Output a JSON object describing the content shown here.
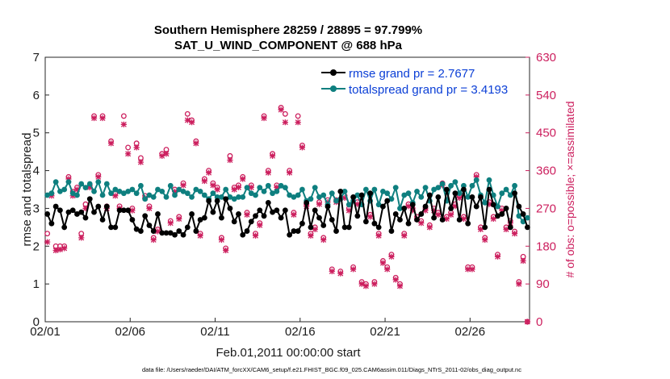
{
  "chart_data": {
    "type": "line",
    "title": "Southern Hemisphere 28259 / 28895 = 97.799%",
    "subtitle": "SAT_U_WIND_COMPONENT @ 688 hPa",
    "xlabel": "Feb.01,2011 00:00:00 start",
    "ylabel": "rmse and totalspread",
    "y2label": "# of obs: o=possible; ×=assimilated",
    "footnote": "data file: /Users/raeder/DAI/ATM_forcXX/CAM6_setup/f.e21.FHIST_BGC.f09_025.CAM6assim.011/Diags_NTrS_2011-02/obs_diag_output.nc",
    "xlim": [
      0,
      28.5
    ],
    "ylim": [
      0,
      7
    ],
    "y2lim": [
      0,
      630
    ],
    "xtick_labels": [
      "02/01",
      "02/06",
      "02/11",
      "02/16",
      "02/21",
      "02/26"
    ],
    "ytick_labels": [
      "0",
      "1",
      "2",
      "3",
      "4",
      "5",
      "6",
      "7"
    ],
    "y2tick_labels": [
      "0",
      "90",
      "180",
      "270",
      "360",
      "450",
      "540",
      "630"
    ],
    "colors": {
      "rmse": "#000000",
      "totalspread": "#0e7f7f",
      "obs": "#cc1f5e",
      "legend_text": "#0b3fd6"
    },
    "series": [
      {
        "name": "rmse grand pr = 2.7677",
        "x": [
          0.125,
          0.375,
          0.625,
          0.875,
          1.125,
          1.375,
          1.625,
          1.875,
          2.125,
          2.375,
          2.625,
          2.875,
          3.125,
          3.375,
          3.625,
          3.875,
          4.125,
          4.375,
          4.625,
          4.875,
          5.125,
          5.375,
          5.625,
          5.875,
          6.125,
          6.375,
          6.625,
          6.875,
          7.125,
          7.375,
          7.625,
          7.875,
          8.125,
          8.375,
          8.625,
          8.875,
          9.125,
          9.375,
          9.625,
          9.875,
          10.125,
          10.375,
          10.625,
          10.875,
          11.125,
          11.375,
          11.625,
          11.875,
          12.125,
          12.375,
          12.625,
          12.875,
          13.125,
          13.375,
          13.625,
          13.875,
          14.125,
          14.375,
          14.625,
          14.875,
          15.125,
          15.375,
          15.625,
          15.875,
          16.125,
          16.375,
          16.625,
          16.875,
          17.125,
          17.375,
          17.625,
          17.875,
          18.125,
          18.375,
          18.625,
          18.875,
          19.125,
          19.375,
          19.625,
          19.875,
          20.125,
          20.375,
          20.625,
          20.875,
          21.125,
          21.375,
          21.625,
          21.875,
          22.125,
          22.375,
          22.625,
          22.875,
          23.125,
          23.375,
          23.625,
          23.875,
          24.125,
          24.375,
          24.625,
          24.875,
          25.125,
          25.375,
          25.625,
          25.875,
          26.125,
          26.375,
          26.625,
          26.875,
          27.125,
          27.375,
          27.625,
          27.875,
          28.125,
          28.375
        ],
        "y": [
          2.85,
          2.6,
          3.05,
          2.95,
          2.5,
          2.9,
          2.95,
          2.85,
          2.9,
          2.75,
          3.25,
          2.9,
          3.05,
          2.7,
          3.05,
          2.5,
          2.5,
          2.95,
          2.95,
          2.95,
          2.7,
          2.45,
          2.4,
          2.8,
          2.55,
          2.4,
          2.85,
          2.35,
          2.35,
          2.35,
          2.3,
          2.4,
          2.3,
          2.5,
          2.85,
          2.4,
          2.7,
          2.75,
          3.2,
          2.9,
          3.2,
          2.75,
          3.25,
          3.0,
          2.65,
          2.85,
          2.3,
          2.4,
          2.65,
          2.8,
          2.95,
          2.8,
          3.15,
          2.9,
          2.95,
          2.75,
          2.95,
          2.3,
          2.4,
          2.4,
          2.6,
          3.15,
          2.5,
          2.95,
          2.75,
          2.55,
          3.05,
          2.7,
          2.4,
          3.45,
          2.5,
          2.5,
          3.3,
          2.8,
          3.35,
          2.65,
          3.4,
          2.6,
          2.5,
          3.05,
          3.2,
          2.4,
          2.85,
          2.7,
          3.0,
          2.6,
          3.1,
          2.7,
          2.85,
          3.05,
          3.35,
          2.75,
          3.3,
          2.7,
          3.5,
          3.0,
          3.4,
          2.7,
          3.5,
          2.6,
          3.3,
          3.05,
          3.3,
          2.5,
          3.5,
          3.1,
          2.8,
          2.85,
          3.0,
          2.5,
          3.4,
          3.05,
          2.85,
          2.5
        ]
      },
      {
        "name": "totalspread grand pr = 3.4193",
        "x": [
          0.125,
          0.375,
          0.625,
          0.875,
          1.125,
          1.375,
          1.625,
          1.875,
          2.125,
          2.375,
          2.625,
          2.875,
          3.125,
          3.375,
          3.625,
          3.875,
          4.125,
          4.375,
          4.625,
          4.875,
          5.125,
          5.375,
          5.625,
          5.875,
          6.125,
          6.375,
          6.625,
          6.875,
          7.125,
          7.375,
          7.625,
          7.875,
          8.125,
          8.375,
          8.625,
          8.875,
          9.125,
          9.375,
          9.625,
          9.875,
          10.125,
          10.375,
          10.625,
          10.875,
          11.125,
          11.375,
          11.625,
          11.875,
          12.125,
          12.375,
          12.625,
          12.875,
          13.125,
          13.375,
          13.625,
          13.875,
          14.125,
          14.375,
          14.625,
          14.875,
          15.125,
          15.375,
          15.625,
          15.875,
          16.125,
          16.375,
          16.625,
          16.875,
          17.125,
          17.375,
          17.625,
          17.875,
          18.125,
          18.375,
          18.625,
          18.875,
          19.125,
          19.375,
          19.625,
          19.875,
          20.125,
          20.375,
          20.625,
          20.875,
          21.125,
          21.375,
          21.625,
          21.875,
          22.125,
          22.375,
          22.625,
          22.875,
          23.125,
          23.375,
          23.625,
          23.875,
          24.125,
          24.375,
          24.625,
          24.875,
          25.125,
          25.375,
          25.625,
          25.875,
          26.125,
          26.375,
          26.625,
          26.875,
          27.125,
          27.375,
          27.625,
          27.875,
          28.125,
          28.375
        ],
        "y": [
          3.35,
          3.4,
          3.7,
          3.45,
          3.5,
          3.7,
          3.4,
          3.35,
          3.65,
          3.55,
          3.65,
          3.45,
          3.7,
          3.35,
          3.65,
          3.4,
          3.5,
          3.45,
          3.4,
          3.45,
          3.5,
          3.4,
          3.6,
          3.25,
          3.35,
          3.3,
          3.5,
          3.45,
          3.3,
          3.6,
          3.35,
          3.5,
          3.45,
          3.4,
          3.3,
          3.5,
          3.45,
          3.35,
          3.25,
          3.4,
          3.3,
          3.3,
          3.5,
          3.3,
          3.25,
          3.3,
          3.3,
          3.55,
          3.4,
          3.35,
          3.55,
          3.45,
          3.6,
          3.4,
          3.45,
          3.6,
          3.55,
          3.35,
          3.3,
          3.35,
          3.5,
          3.2,
          3.25,
          3.55,
          3.3,
          3.35,
          3.1,
          3.4,
          3.2,
          3.25,
          3.45,
          3.1,
          3.2,
          3.35,
          3.1,
          3.5,
          3.2,
          3.5,
          3.1,
          3.45,
          3.4,
          3.25,
          3.55,
          3.0,
          3.35,
          3.4,
          3.15,
          3.45,
          3.3,
          3.55,
          3.2,
          3.5,
          3.55,
          3.65,
          3.2,
          3.6,
          3.7,
          3.4,
          3.6,
          3.3,
          3.6,
          3.75,
          3.35,
          3.15,
          3.75,
          3.35,
          3.05,
          3.4,
          3.5,
          3.35,
          3.6,
          2.8,
          2.65,
          2.75
        ]
      },
      {
        "name": "obs possible",
        "x": [
          0.125,
          0.375,
          0.625,
          0.875,
          1.125,
          1.375,
          1.625,
          1.875,
          2.125,
          2.375,
          2.625,
          2.875,
          3.125,
          3.375,
          3.625,
          3.875,
          4.125,
          4.375,
          4.625,
          4.875,
          5.125,
          5.375,
          5.625,
          5.875,
          6.125,
          6.375,
          6.625,
          6.875,
          7.125,
          7.375,
          7.625,
          7.875,
          8.125,
          8.375,
          8.625,
          8.875,
          9.125,
          9.375,
          9.625,
          9.875,
          10.125,
          10.375,
          10.625,
          10.875,
          11.125,
          11.375,
          11.625,
          11.875,
          12.125,
          12.375,
          12.625,
          12.875,
          13.125,
          13.375,
          13.625,
          13.875,
          14.125,
          14.375,
          14.625,
          14.875,
          15.125,
          15.375,
          15.625,
          15.875,
          16.125,
          16.375,
          16.625,
          16.875,
          17.125,
          17.375,
          17.625,
          17.875,
          18.125,
          18.375,
          18.625,
          18.875,
          19.125,
          19.375,
          19.625,
          19.875,
          20.125,
          20.375,
          20.625,
          20.875,
          21.125,
          21.375,
          21.625,
          21.875,
          22.125,
          22.375,
          22.625,
          22.875,
          23.125,
          23.375,
          23.625,
          23.875,
          24.125,
          24.375,
          24.625,
          24.875,
          25.125,
          25.375,
          25.625,
          25.875,
          26.125,
          26.375,
          26.625,
          26.875,
          27.125,
          27.375,
          27.625,
          27.875,
          28.125,
          28.375
        ],
        "y": [
          210,
          305,
          180,
          180,
          180,
          345,
          310,
          320,
          210,
          280,
          325,
          490,
          350,
          490,
          275,
          430,
          305,
          275,
          490,
          415,
          270,
          425,
          390,
          300,
          275,
          200,
          220,
          400,
          410,
          240,
          315,
          250,
          330,
          495,
          480,
          430,
          210,
          340,
          360,
          330,
          320,
          200,
          175,
          395,
          320,
          325,
          345,
          260,
          325,
          210,
          235,
          490,
          360,
          400,
          325,
          510,
          495,
          360,
          260,
          490,
          420,
          280,
          210,
          225,
          285,
          200,
          290,
          125,
          290,
          120,
          300,
          270,
          130,
          285,
          95,
          90,
          255,
          95,
          210,
          145,
          130,
          160,
          105,
          90,
          210,
          280,
          270,
          250,
          240,
          270,
          230,
          270,
          260,
          330,
          250,
          260,
          280,
          300,
          250,
          130,
          130,
          350,
          225,
          200,
          285,
          250,
          160,
          270,
          225,
          240,
          215,
          95,
          155,
          0
        ]
      },
      {
        "name": "obs assimilated",
        "x": [
          0.125,
          0.375,
          0.625,
          0.875,
          1.125,
          1.375,
          1.625,
          1.875,
          2.125,
          2.375,
          2.625,
          2.875,
          3.125,
          3.375,
          3.625,
          3.875,
          4.125,
          4.375,
          4.625,
          4.875,
          5.125,
          5.375,
          5.625,
          5.875,
          6.125,
          6.375,
          6.625,
          6.875,
          7.125,
          7.375,
          7.625,
          7.875,
          8.125,
          8.375,
          8.625,
          8.875,
          9.125,
          9.375,
          9.625,
          9.875,
          10.125,
          10.375,
          10.625,
          10.875,
          11.125,
          11.375,
          11.625,
          11.875,
          12.125,
          12.375,
          12.625,
          12.875,
          13.125,
          13.375,
          13.625,
          13.875,
          14.125,
          14.375,
          14.625,
          14.875,
          15.125,
          15.375,
          15.625,
          15.875,
          16.125,
          16.375,
          16.625,
          16.875,
          17.125,
          17.375,
          17.625,
          17.875,
          18.125,
          18.375,
          18.625,
          18.875,
          19.125,
          19.375,
          19.625,
          19.875,
          20.125,
          20.375,
          20.625,
          20.875,
          21.125,
          21.375,
          21.625,
          21.875,
          22.125,
          22.375,
          22.625,
          22.875,
          23.125,
          23.375,
          23.625,
          23.875,
          24.125,
          24.375,
          24.625,
          24.875,
          25.125,
          25.375,
          25.625,
          25.875,
          26.125,
          26.375,
          26.625,
          26.875,
          27.125,
          27.375,
          27.625,
          27.875,
          28.125,
          28.375
        ],
        "y": [
          190,
          300,
          170,
          172,
          175,
          340,
          300,
          315,
          200,
          270,
          320,
          485,
          345,
          485,
          270,
          425,
          300,
          270,
          470,
          400,
          265,
          415,
          380,
          295,
          270,
          195,
          215,
          395,
          400,
          235,
          310,
          245,
          325,
          480,
          475,
          425,
          205,
          335,
          355,
          325,
          315,
          195,
          170,
          385,
          315,
          320,
          340,
          255,
          320,
          205,
          230,
          485,
          355,
          395,
          320,
          505,
          475,
          355,
          255,
          475,
          415,
          275,
          205,
          220,
          280,
          195,
          285,
          120,
          285,
          115,
          295,
          265,
          125,
          280,
          90,
          85,
          250,
          90,
          205,
          140,
          125,
          155,
          100,
          85,
          205,
          275,
          265,
          245,
          235,
          265,
          225,
          265,
          255,
          325,
          245,
          255,
          275,
          295,
          245,
          125,
          125,
          345,
          220,
          195,
          280,
          245,
          155,
          265,
          220,
          235,
          210,
          90,
          145,
          0
        ]
      }
    ]
  }
}
